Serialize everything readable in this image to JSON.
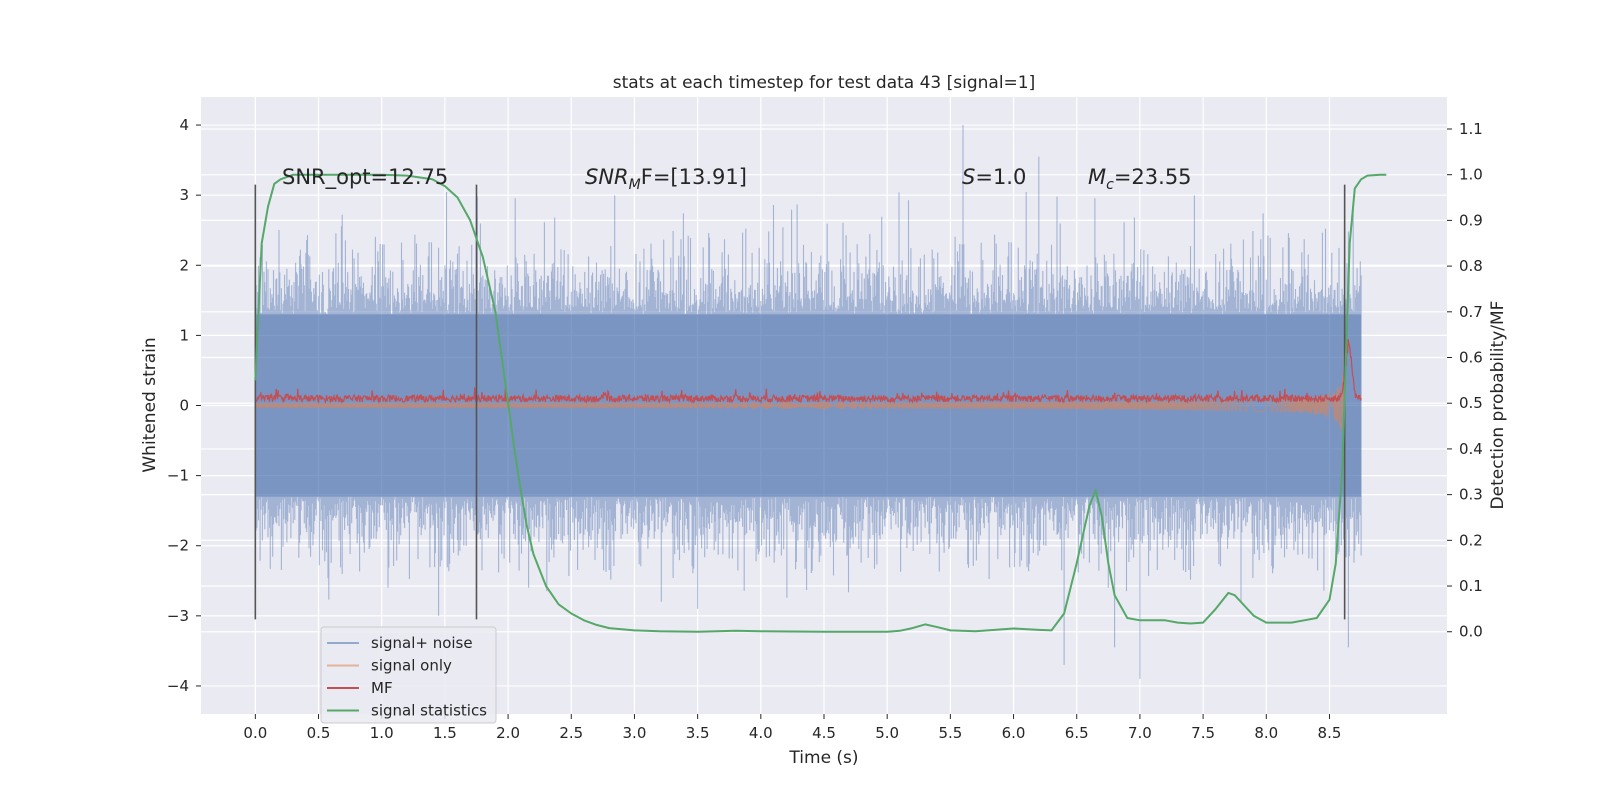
{
  "chart_data": {
    "type": "line",
    "title": "stats at each timestep for test data 43 [signal=1]",
    "xlabel": "Time (s)",
    "ylabel": "Whitened strain",
    "y2label": "Detection probability/MF",
    "xlim": [
      -0.43,
      9.43
    ],
    "ylim": [
      -4.4,
      4.4
    ],
    "y2lim": [
      -0.18,
      1.17
    ],
    "xticks": [
      "0.0",
      "0.5",
      "1.0",
      "1.5",
      "2.0",
      "2.5",
      "3.0",
      "3.5",
      "4.0",
      "4.5",
      "5.0",
      "5.5",
      "6.0",
      "6.5",
      "7.0",
      "7.5",
      "8.0",
      "8.5"
    ],
    "xtick_values": [
      0,
      0.5,
      1,
      1.5,
      2,
      2.5,
      3,
      3.5,
      4,
      4.5,
      5,
      5.5,
      6,
      6.5,
      7,
      7.5,
      8,
      8.5
    ],
    "yticks": [
      "−4",
      "−3",
      "−2",
      "−1",
      "0",
      "1",
      "2",
      "3",
      "4"
    ],
    "ytick_values": [
      -4,
      -3,
      -2,
      -1,
      0,
      1,
      2,
      3,
      4
    ],
    "y2ticks": [
      "0.0",
      "0.1",
      "0.2",
      "0.3",
      "0.4",
      "0.5",
      "0.6",
      "0.7",
      "0.8",
      "0.9",
      "1.0",
      "1.1"
    ],
    "y2tick_values": [
      0,
      0.1,
      0.2,
      0.3,
      0.4,
      0.5,
      0.6,
      0.7,
      0.8,
      0.9,
      1.0,
      1.1
    ],
    "annotations": {
      "snr_opt": "SNR_opt=12.75",
      "snr_mf_base": "SNR",
      "snr_mf_sub": "M",
      "snr_mf_rest": "F=[13.91]",
      "s_italic": "S",
      "s_value": "=1.0",
      "mc_base": "M",
      "mc_sub": "c",
      "mc_value": "=23.55"
    },
    "vertical_markers": [
      {
        "name": "segment-start",
        "x": 0.0,
        "ymin": -3.05,
        "ymax": 3.15
      },
      {
        "name": "segment-split",
        "x": 1.75,
        "ymin": -3.05,
        "ymax": 3.15
      },
      {
        "name": "merger-time",
        "x": 8.62,
        "ymin": -3.05,
        "ymax": 3.15
      }
    ],
    "series": [
      {
        "name": "signal+ noise",
        "color": "#4c72b0",
        "kind": "strain",
        "range": [
          0,
          8.75
        ],
        "band": [
          -1.3,
          1.3
        ],
        "peaks": [
          [
            1.05,
            -2.6
          ],
          [
            1.45,
            -3.0
          ],
          [
            3.5,
            -2.9
          ],
          [
            5.6,
            4.0
          ],
          [
            6.2,
            3.55
          ],
          [
            6.4,
            -3.7
          ],
          [
            6.8,
            -3.45
          ],
          [
            7.0,
            -3.9
          ],
          [
            8.65,
            -3.45
          ]
        ]
      },
      {
        "name": "signal only",
        "color": "#dd8452",
        "kind": "chirp",
        "merger": 8.62,
        "max_amplitude": 0.95
      },
      {
        "name": "MF",
        "color": "#c44e52",
        "kind": "matched-filter",
        "baseline": 0.1,
        "peak": [
          8.65,
          1.0
        ]
      },
      {
        "name": "signal statistics",
        "color": "#55a868",
        "axis": "right",
        "x": [
          0.0,
          0.05,
          0.1,
          0.15,
          0.2,
          0.3,
          0.4,
          0.6,
          0.8,
          1.0,
          1.2,
          1.4,
          1.5,
          1.6,
          1.7,
          1.8,
          1.9,
          1.95,
          2.0,
          2.05,
          2.1,
          2.15,
          2.2,
          2.3,
          2.4,
          2.5,
          2.6,
          2.7,
          2.8,
          3.0,
          3.2,
          3.5,
          3.8,
          4.0,
          4.5,
          5.0,
          5.1,
          5.2,
          5.3,
          5.4,
          5.5,
          5.7,
          6.0,
          6.2,
          6.3,
          6.4,
          6.5,
          6.6,
          6.65,
          6.7,
          6.75,
          6.8,
          6.9,
          7.0,
          7.1,
          7.2,
          7.3,
          7.4,
          7.5,
          7.6,
          7.7,
          7.75,
          7.8,
          7.9,
          8.0,
          8.2,
          8.3,
          8.4,
          8.5,
          8.55,
          8.6,
          8.63,
          8.66,
          8.7,
          8.75,
          8.8,
          8.9,
          8.95
        ],
        "y": [
          0.55,
          0.85,
          0.93,
          0.98,
          0.99,
          1.0,
          1.0,
          1.0,
          1.0,
          1.0,
          0.998,
          0.99,
          0.975,
          0.95,
          0.9,
          0.82,
          0.7,
          0.6,
          0.5,
          0.4,
          0.31,
          0.23,
          0.17,
          0.1,
          0.06,
          0.04,
          0.025,
          0.015,
          0.008,
          0.003,
          0.001,
          0.0,
          0.002,
          0.001,
          0.0,
          0.0,
          0.002,
          0.008,
          0.016,
          0.01,
          0.003,
          0.001,
          0.007,
          0.004,
          0.003,
          0.04,
          0.15,
          0.275,
          0.31,
          0.25,
          0.15,
          0.08,
          0.03,
          0.025,
          0.025,
          0.025,
          0.02,
          0.018,
          0.02,
          0.05,
          0.085,
          0.08,
          0.065,
          0.035,
          0.02,
          0.02,
          0.025,
          0.03,
          0.07,
          0.15,
          0.35,
          0.6,
          0.85,
          0.97,
          0.99,
          0.998,
          1.0,
          1.0
        ]
      }
    ],
    "legend": {
      "position": "lower-left",
      "labels": [
        "signal+ noise",
        "signal only",
        "MF",
        "signal statistics"
      ]
    }
  }
}
